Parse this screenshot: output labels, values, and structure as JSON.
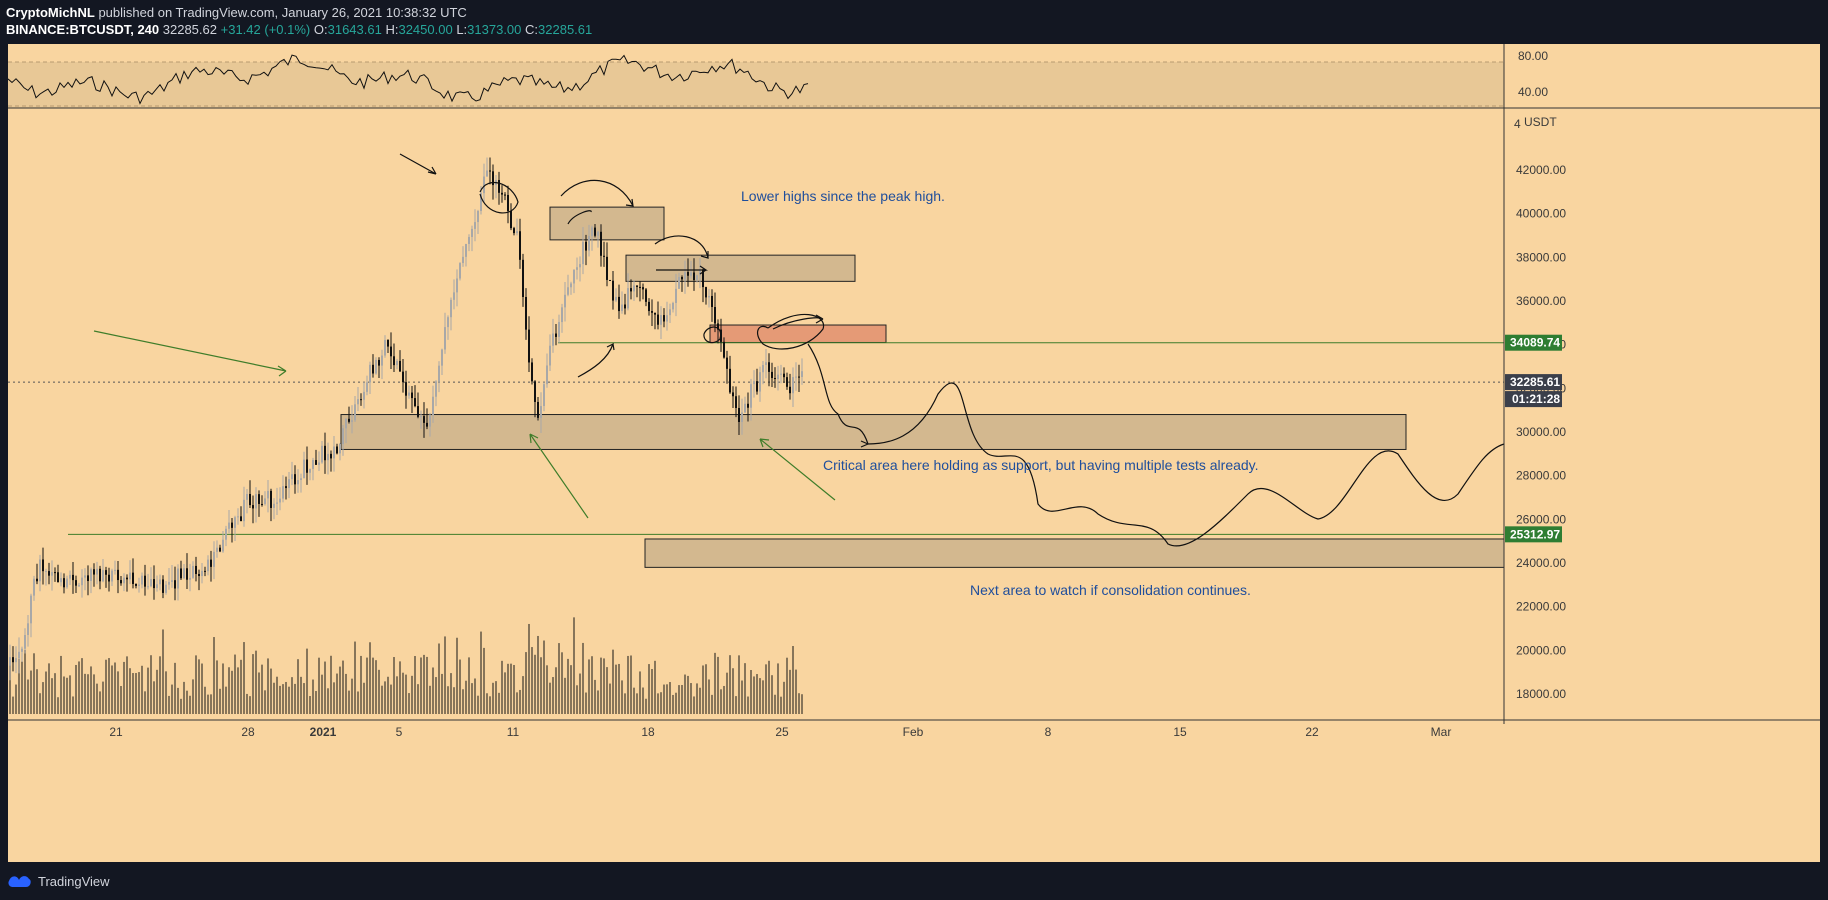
{
  "header": {
    "author": "CryptoMichNL",
    "published": " published on TradingView.com, January 26, 2021 10:38:32 UTC",
    "symbol": "BINANCE:BTCUSDT, 240",
    "price": "32285.62",
    "change": "+31.42 (+0.1%)",
    "o_label": "O:",
    "o_value": "31643.61",
    "h_label": "H:",
    "h_value": "32450.00",
    "l_label": "L:",
    "l_value": "31373.00",
    "c_label": "C:",
    "c_value": "32285.61"
  },
  "footer": {
    "brand": "TradingView"
  },
  "colors": {
    "background": "#f9d5a0",
    "candle_up": "#a8a8a8",
    "candle_down": "#111111",
    "line_green": "#3f7d2a",
    "tag_green": "#2e7d32",
    "tag_dark": "#3b3f4a",
    "zone_fill": "#d3b88f",
    "zone_red": "#e59a76",
    "note_blue": "#1f4e9c"
  },
  "chart_data": {
    "type": "candlestick",
    "title": "",
    "unit_label": "USDT",
    "y_ticks": [
      18000,
      20000,
      22000,
      24000,
      26000,
      28000,
      30000,
      32000,
      34000,
      36000,
      38000,
      40000,
      42000
    ],
    "y_tick_labels": [
      "18000.00",
      "20000.00",
      "22000.00",
      "24000.00",
      "26000.00",
      "28000.00",
      "30000.00",
      "32000.00",
      "34000.00",
      "36000.00",
      "38000.00",
      "40000.00",
      "42000.00"
    ],
    "top_tick_label": "4",
    "ylim": [
      17000,
      43800
    ],
    "x_ticks": [
      "21",
      "28",
      "2021",
      "5",
      "11",
      "18",
      "25",
      "Feb",
      "8",
      "15",
      "22",
      "Mar"
    ],
    "last_price": "32285.61",
    "countdown": "01:21:28",
    "levels": [
      {
        "value": 34089.74,
        "label": "34089.74"
      },
      {
        "value": 25312.97,
        "label": "25312.97"
      }
    ],
    "zones": [
      {
        "name": "support-zone",
        "y_from": 29200,
        "y_to": 30800
      },
      {
        "name": "lower-zone",
        "y_from": 23800,
        "y_to": 25100
      },
      {
        "name": "resistance-1",
        "y_from": 38800,
        "y_to": 40300
      },
      {
        "name": "resistance-2",
        "y_from": 36900,
        "y_to": 38100
      },
      {
        "name": "resistance-red",
        "y_from": 34100,
        "y_to": 34900
      }
    ],
    "annotations": [
      "Lower highs since the peak high.",
      "Critical area here holding as support, but having multiple tests already.",
      "Next area to watch if consolidation continues."
    ],
    "series": [
      {
        "name": "BTCUSDT",
        "ohlc_keypoints": [
          [
            0,
            19300
          ],
          [
            10,
            19500
          ],
          [
            30,
            23800
          ],
          [
            60,
            23200
          ],
          [
            100,
            23600
          ],
          [
            150,
            22900
          ],
          [
            200,
            24000
          ],
          [
            240,
            26800
          ],
          [
            270,
            27000
          ],
          [
            300,
            28500
          ],
          [
            330,
            29400
          ],
          [
            360,
            32500
          ],
          [
            380,
            34000
          ],
          [
            400,
            31500
          ],
          [
            420,
            30500
          ],
          [
            440,
            35500
          ],
          [
            470,
            40500
          ],
          [
            480,
            41800
          ],
          [
            500,
            40200
          ],
          [
            510,
            38800
          ],
          [
            520,
            33500
          ],
          [
            530,
            31000
          ],
          [
            550,
            35200
          ],
          [
            570,
            37500
          ],
          [
            585,
            39800
          ],
          [
            600,
            37000
          ],
          [
            610,
            35500
          ],
          [
            630,
            36800
          ],
          [
            650,
            34800
          ],
          [
            670,
            36800
          ],
          [
            690,
            37500
          ],
          [
            710,
            34500
          ],
          [
            730,
            30500
          ],
          [
            740,
            31500
          ],
          [
            760,
            33200
          ],
          [
            780,
            31800
          ],
          [
            800,
            33800
          ],
          [
            812,
            32300
          ]
        ]
      },
      {
        "name": "RSI",
        "values_range": [
          40,
          80
        ],
        "ticks": [
          "80.00",
          "40.00"
        ]
      }
    ]
  }
}
